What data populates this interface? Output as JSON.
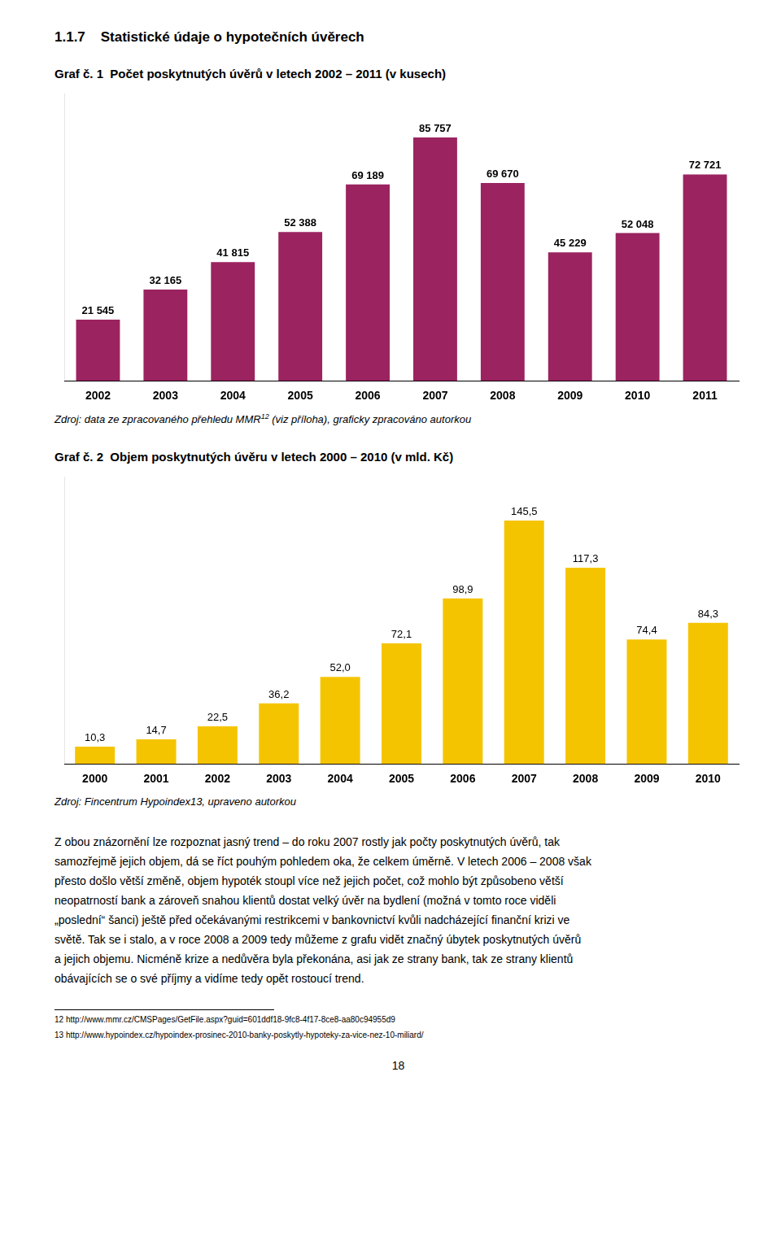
{
  "page_title": "1.1.7    Statistické údaje o hypotečních úvěrech",
  "chart_data": [
    {
      "type": "bar",
      "title": "Graf č. 1  Počet poskytnutých úvěrů v letech 2002 – 2011 (v kusech)",
      "categories": [
        "2002",
        "2003",
        "2004",
        "2005",
        "2006",
        "2007",
        "2008",
        "2009",
        "2010",
        "2011"
      ],
      "values": [
        21545,
        32165,
        41815,
        52388,
        69189,
        85757,
        69670,
        45229,
        52048,
        72721
      ],
      "value_labels": [
        "21 545",
        "32 165",
        "41 815",
        "52 388",
        "69 189",
        "85 757",
        "69 670",
        "45 229",
        "52 048",
        "72 721"
      ],
      "color": "#9B2360",
      "ylim": [
        0,
        101193.26
      ],
      "data_labels": true,
      "tick_labels": "x",
      "grid": false,
      "source": [
        "Zdroj: data ze zpracovaného přehledu MMR",
        {
          "superscript": "12"
        },
        " (viz příloha), graficky zpracováno autorkou"
      ]
    },
    {
      "type": "bar",
      "title": "Graf č. 2  Objem poskytnutých úvěru v letech 2000 – 2010 (v mld. Kč)",
      "categories": [
        "2000",
        "2001",
        "2002",
        "2003",
        "2004",
        "2005",
        "2006",
        "2007",
        "2008",
        "2009",
        "2010"
      ],
      "values": [
        10.3,
        14.7,
        22.5,
        36.2,
        52.0,
        72.1,
        98.9,
        145.5,
        117.3,
        74.4,
        84.3
      ],
      "value_labels": [
        "10,3",
        "14,7",
        "22,5",
        "36,2",
        "52,0",
        "72,1",
        "98,9",
        "145,5",
        "117,3",
        "74,4",
        "84,3"
      ],
      "color": "#F5C400",
      "ylim": [
        0,
        171.69
      ],
      "data_labels": true,
      "tick_labels": "x",
      "grid": false,
      "source": [
        "Zdroj: Fincentrum Hypoindex13, upraveno autorkou"
      ]
    }
  ],
  "body": [
    "Z obou znázornění lze rozpoznat jasný trend – do roku 2007 rostly jak počty poskytnutých úvěrů, tak",
    "samozřejmě jejich objem, dá se říct pouhým pohledem oka, že celkem úměrně. V letech 2006 – 2008 však",
    "přesto došlo větší změně, objem hypoték stoupl více než jejich počet, což mohlo být způsobeno větší",
    "neopatrností bank a zároveň snahou klientů dostat velký úvěr na bydlení (možná v tomto roce viděli",
    "„poslední“ šanci) ještě před očekávanými restrikcemi v bankovnictví kvůli nadcházející finanční krizi ve",
    "světě. Tak se i stalo, a v roce 2008 a 2009 tedy můžeme z grafu vidět značný úbytek poskytnutých úvěrů",
    "a jejich objemu. Nicméně krize a nedůvěra byla překonána, asi jak ze strany bank, tak ze strany klientů",
    "obávajících se o své příjmy a vidíme tedy opět rostoucí trend."
  ],
  "footnotes": [
    "12 http://www.mmr.cz/CMSPages/GetFile.aspx?guid=601ddf18-9fc8-4f17-8ce8-aa80c94955d9",
    "13 http://www.hypoindex.cz/hypoindex-prosinec-2010-banky-poskytly-hypoteky-za-vice-nez-10-miliard/"
  ],
  "page_number": "18"
}
